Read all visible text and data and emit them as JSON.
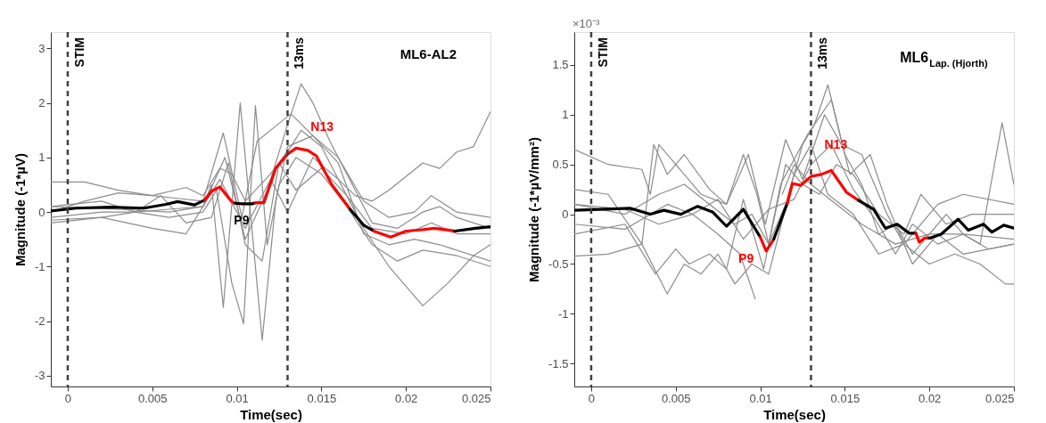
{
  "chart_data": [
    {
      "type": "line",
      "title": "ML6-AL2",
      "xlabel": "Time(sec)",
      "ylabel": "Magnitude (-1*µV)",
      "xlim": [
        -0.001,
        0.025
      ],
      "ylim": [
        -3.2,
        3.3
      ],
      "xticks": [
        0,
        0.005,
        0.01,
        0.015,
        0.02,
        0.025
      ],
      "yticks": [
        -3,
        -2,
        -1,
        0,
        1,
        2,
        3
      ],
      "grid": false,
      "line_style": "solid",
      "marker": "none",
      "ref_lines": [
        {
          "axis": "x",
          "value": 0,
          "label": "STIM",
          "color": "#404040",
          "line_style": "dashed"
        },
        {
          "axis": "x",
          "value": 0.013,
          "label": "13ms",
          "color": "#404040",
          "line_style": "dashed"
        }
      ],
      "annotations": [
        {
          "text": "N13",
          "x": 0.01504,
          "y": 1.56
        },
        {
          "text": "P9",
          "x": 0.01028,
          "y": -0.16
        }
      ],
      "series": [
        {
          "color": "#8c8c8c",
          "x": [
            -0.001,
            0.001,
            0.003,
            0.005,
            0.007,
            0.008,
            0.009,
            0.0097,
            0.0105,
            0.012,
            0.0132,
            0.0138,
            0.015,
            0.016,
            0.017,
            0.018,
            0.019,
            0.02,
            0.021,
            0.022,
            0.023,
            0.024,
            0.025
          ],
          "values": [
            0.0,
            0.2,
            0.35,
            0.3,
            0.45,
            0.3,
            0.8,
            0.7,
            0.2,
            0.7,
            1.2,
            1.5,
            1.2,
            0.6,
            0.3,
            0.2,
            0.4,
            0.65,
            0.9,
            0.8,
            1.1,
            1.2,
            1.84
          ]
        },
        {
          "color": "#8c8c8c",
          "x": [
            -0.001,
            0.002,
            0.004,
            0.006,
            0.008,
            0.0093,
            0.0105,
            0.0118,
            0.013,
            0.0138,
            0.0145,
            0.0155,
            0.017,
            0.018,
            0.0195,
            0.021,
            0.022,
            0.023,
            0.025
          ],
          "values": [
            -0.1,
            0.0,
            0.0,
            0.05,
            0.1,
            1.0,
            -0.5,
            0.4,
            1.6,
            2.35,
            2.0,
            1.3,
            0.4,
            -0.2,
            -0.3,
            0.0,
            0.1,
            -0.1,
            -0.3
          ]
        },
        {
          "color": "#8c8c8c",
          "x": [
            -0.001,
            0.003,
            0.006,
            0.008,
            0.0085,
            0.0092,
            0.0102,
            0.0108,
            0.0115,
            0.0123,
            0.013,
            0.0145,
            0.016,
            0.0175,
            0.019,
            0.0205,
            0.022,
            0.025
          ],
          "values": [
            0.1,
            0.05,
            0.0,
            0.1,
            0.5,
            -1.75,
            2.0,
            0.0,
            -2.35,
            0.2,
            1.2,
            1.4,
            0.9,
            -0.4,
            -0.6,
            -0.5,
            -0.6,
            -0.9
          ]
        },
        {
          "color": "#8c8c8c",
          "x": [
            -0.001,
            0.002,
            0.004,
            0.006,
            0.008,
            0.0088,
            0.0097,
            0.0104,
            0.0111,
            0.0118,
            0.0125,
            0.0135,
            0.015,
            0.0165,
            0.018,
            0.0195,
            0.021,
            0.023,
            0.025
          ],
          "values": [
            -0.15,
            -0.1,
            0.0,
            -0.1,
            0.0,
            0.4,
            -1.3,
            -2.05,
            1.95,
            -0.6,
            0.5,
            1.0,
            0.7,
            0.1,
            -0.6,
            -0.9,
            -0.7,
            -0.8,
            -1.0
          ]
        },
        {
          "color": "#8c8c8c",
          "x": [
            -0.001,
            0.002,
            0.005,
            0.007,
            0.009,
            0.0105,
            0.012,
            0.013,
            0.0145,
            0.016,
            0.0175,
            0.019,
            0.021,
            0.0225,
            0.024,
            0.025
          ],
          "values": [
            -0.2,
            -0.1,
            -0.3,
            -0.4,
            0.6,
            -0.3,
            0.6,
            0.0,
            1.0,
            0.6,
            -0.3,
            -1.0,
            -1.72,
            -1.3,
            -0.8,
            -0.6
          ]
        },
        {
          "color": "#8c8c8c",
          "x": [
            -0.001,
            0.001,
            0.003,
            0.005,
            0.0065,
            0.008,
            0.0092,
            0.0103,
            0.0112,
            0.0122,
            0.0132,
            0.0145,
            0.016,
            0.0175,
            0.019,
            0.0205,
            0.0215,
            0.023,
            0.025
          ],
          "values": [
            0.55,
            0.55,
            0.4,
            0.3,
            0.25,
            0.2,
            1.45,
            -0.1,
            1.3,
            1.55,
            1.8,
            1.4,
            1.0,
            0.2,
            -0.1,
            0.0,
            0.3,
            0.0,
            -0.1
          ]
        },
        {
          "color": "#8c8c8c",
          "x": [
            -0.001,
            0.002,
            0.004,
            0.0055,
            0.007,
            0.0085,
            0.0095,
            0.0105,
            0.0115,
            0.0125,
            0.0135,
            0.015,
            0.0165,
            0.018,
            0.02,
            0.0215,
            0.023,
            0.025
          ],
          "values": [
            0.1,
            0.2,
            0.0,
            0.3,
            -0.2,
            -0.1,
            0.9,
            -0.6,
            -0.9,
            0.9,
            0.4,
            0.8,
            0.3,
            -0.3,
            -0.4,
            -0.2,
            -0.4,
            -0.4
          ]
        },
        {
          "color": "#000000",
          "x": [
            -0.001,
            0.0005,
            0.0025,
            0.0045,
            0.0058,
            0.0065,
            0.0075,
            0.0081
          ],
          "values": [
            0.02,
            0.07,
            0.09,
            0.07,
            0.14,
            0.19,
            0.13,
            0.22
          ]
        },
        {
          "color": "#ff0000",
          "x": [
            0.0081,
            0.0085,
            0.009,
            0.0097,
            0.0099
          ],
          "values": [
            0.22,
            0.38,
            0.46,
            0.19,
            0.16
          ]
        },
        {
          "color": "#000000",
          "x": [
            0.0099,
            0.0103,
            0.0109,
            0.0111
          ],
          "values": [
            0.16,
            0.15,
            0.15,
            0.17
          ]
        },
        {
          "color": "#ff0000",
          "x": [
            0.0111,
            0.0116,
            0.0123,
            0.013,
            0.0135,
            0.0142,
            0.0147,
            0.0156,
            0.0167
          ],
          "values": [
            0.17,
            0.17,
            0.8,
            1.06,
            1.17,
            1.13,
            1.03,
            0.51,
            0.05
          ]
        },
        {
          "color": "#000000",
          "x": [
            0.0167,
            0.0175,
            0.0181
          ],
          "values": [
            0.05,
            -0.24,
            -0.35
          ]
        },
        {
          "color": "#ff0000",
          "x": [
            0.0181,
            0.0191,
            0.02,
            0.0208,
            0.0217,
            0.0229
          ],
          "values": [
            -0.35,
            -0.46,
            -0.35,
            -0.33,
            -0.3,
            -0.35
          ]
        },
        {
          "color": "#000000",
          "x": [
            0.0229,
            0.0241,
            0.025
          ],
          "values": [
            -0.35,
            -0.3,
            -0.27
          ]
        }
      ]
    },
    {
      "type": "line",
      "title": "ML6$_{Lap. (Hjorth)}$",
      "xlabel": "Time(sec)",
      "ylabel": "Magnitude (-1*µV/mm²)",
      "xlim": [
        -0.001,
        0.025
      ],
      "ylim": [
        -1.73,
        1.83
      ],
      "xticks": [
        0,
        0.005,
        0.01,
        0.015,
        0.02,
        0.025
      ],
      "yticks": [
        -1.5,
        -1,
        -0.5,
        0,
        0.5,
        1,
        1.5
      ],
      "grid": false,
      "line_style": "solid",
      "marker": "none",
      "ref_lines": [
        {
          "axis": "x",
          "value": 0,
          "label": "STIM",
          "color": "#404040",
          "line_style": "dashed"
        },
        {
          "axis": "x",
          "value": 0.013,
          "label": "13ms",
          "color": "#404040",
          "line_style": "dashed"
        }
      ],
      "annotations": [
        "×10⁻³",
        {
          "text": "N13",
          "x": 0.01447,
          "y": 0.69
        },
        {
          "text": "P9",
          "x": 0.00916,
          "y": -0.45
        }
      ],
      "series": [
        {
          "color": "#8c8c8c",
          "x": [
            -0.001,
            0.001,
            0.003,
            0.0035,
            0.004,
            0.005,
            0.0065,
            0.008,
            0.009,
            0.0098,
            0.0105,
            0.0115,
            0.0125,
            0.0132,
            0.014,
            0.015,
            0.016,
            0.017,
            0.018,
            0.019,
            0.02,
            0.021,
            0.022,
            0.023,
            0.0243,
            0.025
          ],
          "values": [
            0.65,
            0.5,
            0.45,
            0.2,
            0.7,
            0.5,
            0.2,
            0.1,
            0.6,
            0.2,
            -0.3,
            0.1,
            0.7,
            0.9,
            1.3,
            0.6,
            0.3,
            -0.2,
            -0.1,
            -0.4,
            -0.2,
            0.0,
            -0.2,
            -0.3,
            0.92,
            0.3
          ]
        },
        {
          "color": "#8c8c8c",
          "x": [
            -0.001,
            0.002,
            0.004,
            0.006,
            0.0075,
            0.0088,
            0.0097,
            0.0099,
            0.0103,
            0.0108,
            0.0113,
            0.012,
            0.013,
            0.0145,
            0.016,
            0.018,
            0.02,
            0.022,
            0.025
          ],
          "values": [
            0.1,
            0.05,
            -0.1,
            0.0,
            -0.2,
            -0.4,
            -0.85,
            null,
            null,
            null,
            0.2,
            0.5,
            0.3,
            0.1,
            -0.1,
            -0.3,
            -0.2,
            -0.2,
            -0.25
          ]
        },
        {
          "color": "#8c8c8c",
          "x": [
            -0.001,
            0.001,
            0.003,
            0.0045,
            0.0055,
            0.0065,
            0.0075,
            0.0085,
            0.0095,
            0.0105,
            0.012,
            0.013,
            0.014,
            0.0155,
            0.017,
            0.0185,
            0.02,
            0.0215,
            0.023,
            0.0245,
            0.025
          ],
          "values": [
            -0.42,
            -0.4,
            -0.3,
            -0.8,
            -0.5,
            -0.6,
            -0.4,
            -0.7,
            -0.5,
            -0.6,
            0.4,
            0.7,
            0.2,
            0.0,
            -0.4,
            -0.3,
            -0.5,
            -0.4,
            -0.5,
            -0.7,
            -0.7
          ]
        },
        {
          "color": "#8c8c8c",
          "x": [
            -0.001,
            0.001,
            0.003,
            0.0037,
            0.0045,
            0.0055,
            0.007,
            0.008,
            0.0093,
            0.0103,
            0.0115,
            0.0125,
            0.0138,
            0.0148,
            0.016,
            0.0175,
            0.0185,
            0.0205,
            0.022,
            0.025
          ],
          "values": [
            0.25,
            0.2,
            -0.3,
            0.7,
            0.4,
            0.6,
            0.25,
            0.1,
            0.6,
            -0.1,
            0.75,
            0.35,
            1.0,
            0.7,
            0.6,
            0.0,
            -0.3,
            0.1,
            0.2,
            0.1
          ]
        },
        {
          "color": "#8c8c8c",
          "x": [
            -0.001,
            0.002,
            0.0038,
            0.005,
            0.0058,
            0.007,
            0.008,
            0.009,
            0.0102,
            0.0112,
            0.0128,
            0.0142,
            0.0153,
            0.0165,
            0.0175,
            0.019,
            0.0205,
            0.022,
            0.025
          ],
          "values": [
            -0.2,
            -0.1,
            -0.6,
            -0.35,
            -0.5,
            -0.4,
            -0.55,
            0.15,
            -0.55,
            0.3,
            0.8,
            1.15,
            0.4,
            0.6,
            0.1,
            -0.5,
            -0.2,
            -0.4,
            -0.3
          ]
        },
        {
          "color": "#8c8c8c",
          "x": [
            -0.001,
            0.002,
            0.004,
            0.0055,
            0.007,
            0.0085,
            0.0095,
            0.0105,
            0.0115,
            0.0125,
            0.0135,
            0.0145,
            0.0155,
            0.017,
            0.0185,
            0.0195,
            0.021,
            0.0225,
            0.025
          ],
          "values": [
            0.1,
            0.0,
            0.2,
            0.3,
            0.1,
            -0.1,
            0.0,
            -0.3,
            0.5,
            0.3,
            0.2,
            0.5,
            0.4,
            0.0,
            -0.2,
            0.2,
            -0.1,
            0.0,
            0.0
          ]
        },
        {
          "color": "#8c8c8c",
          "x": [
            -0.001,
            0.002,
            0.0045,
            0.006,
            0.0075,
            0.009,
            0.0105,
            0.012,
            0.013,
            0.0142,
            0.0155,
            0.0168,
            0.018,
            0.019,
            0.0205,
            0.022,
            0.0235,
            0.025
          ],
          "values": [
            -0.1,
            -0.15,
            0.1,
            0.0,
            0.15,
            -0.25,
            0.05,
            0.15,
            0.5,
            0.7,
            0.25,
            -0.05,
            -0.4,
            -0.1,
            -0.3,
            -0.2,
            -0.35,
            -0.3
          ]
        },
        {
          "color": "#000000",
          "x": [
            -0.001,
            0.0023,
            0.0035,
            0.0043,
            0.0053,
            0.0063,
            0.0072,
            0.008,
            0.009,
            0.01
          ],
          "values": [
            0.04,
            0.06,
            0.0,
            0.04,
            0.0,
            0.08,
            0.02,
            -0.12,
            0.05,
            -0.23
          ]
        },
        {
          "color": "#ff0000",
          "x": [
            0.01,
            0.01035,
            0.0108
          ],
          "values": [
            -0.23,
            -0.37,
            -0.25
          ]
        },
        {
          "color": "#000000",
          "x": [
            0.0108,
            0.0116
          ],
          "values": [
            -0.25,
            0.11
          ]
        },
        {
          "color": "#ff0000",
          "x": [
            0.0116,
            0.0119,
            0.0124,
            0.013,
            0.0136,
            0.0142,
            0.0151,
            0.0158
          ],
          "values": [
            0.11,
            0.31,
            0.29,
            0.38,
            0.4,
            0.44,
            0.22,
            0.14
          ]
        },
        {
          "color": "#000000",
          "x": [
            0.0158,
            0.0167,
            0.0174,
            0.0181,
            0.0188,
            0.0192
          ],
          "values": [
            0.14,
            0.05,
            -0.14,
            -0.1,
            -0.19,
            -0.19
          ]
        },
        {
          "color": "#ff0000",
          "x": [
            0.0192,
            0.0194,
            0.0197,
            0.02
          ],
          "values": [
            -0.19,
            -0.28,
            -0.24,
            -0.24
          ]
        },
        {
          "color": "#000000",
          "x": [
            0.02,
            0.0207,
            0.0217,
            0.0223,
            0.0232,
            0.0237,
            0.0244,
            0.025
          ],
          "values": [
            -0.24,
            -0.2,
            -0.05,
            -0.16,
            -0.1,
            -0.18,
            -0.11,
            -0.14
          ]
        }
      ]
    }
  ]
}
